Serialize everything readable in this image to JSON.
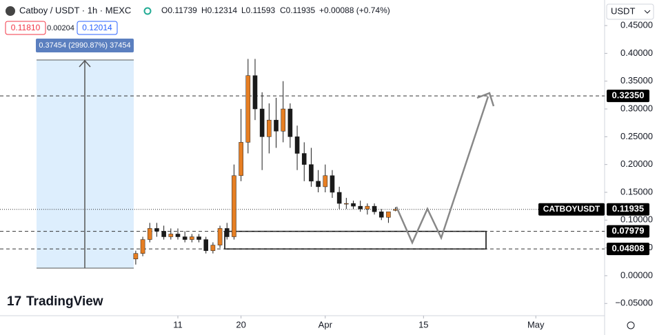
{
  "chart_data": {
    "type": "candlestick",
    "symbol": "Catboy / USDT · 1h · MEXC",
    "ohlc_text": [
      "O0.11739",
      "H0.12314",
      "L0.11593",
      "C0.11935",
      "+0.00088 (+0.74%)"
    ],
    "bid": "0.11810",
    "spread": "0.00204",
    "ask": "0.12014",
    "currency": "USDT",
    "measure_label": "0.37454 (2990.87%) 37454",
    "watermark": "TradingView",
    "up_color": "#e67e22",
    "down_color": "#1a1a1a",
    "x": [
      64,
      65,
      66,
      67,
      68,
      69,
      70,
      71,
      72,
      73,
      74,
      75,
      76,
      77,
      78,
      79,
      80,
      81,
      82,
      83,
      84,
      85,
      86,
      87,
      88,
      89,
      90,
      91,
      92,
      93,
      94,
      95,
      96,
      97,
      98,
      99,
      100,
      101
    ],
    "open": [
      0.03,
      0.04,
      0.065,
      0.085,
      0.08,
      0.07,
      0.075,
      0.07,
      0.065,
      0.07,
      0.065,
      0.045,
      0.055,
      0.085,
      0.07,
      0.18,
      0.24,
      0.36,
      0.3,
      0.25,
      0.28,
      0.26,
      0.3,
      0.25,
      0.22,
      0.2,
      0.17,
      0.16,
      0.18,
      0.15,
      0.13,
      0.13,
      0.125,
      0.12,
      0.125,
      0.115,
      0.105,
      0.11739
    ],
    "high": [
      0.045,
      0.07,
      0.095,
      0.095,
      0.09,
      0.085,
      0.085,
      0.08,
      0.075,
      0.075,
      0.07,
      0.06,
      0.09,
      0.095,
      0.2,
      0.3,
      0.39,
      0.39,
      0.33,
      0.31,
      0.32,
      0.35,
      0.31,
      0.27,
      0.24,
      0.23,
      0.19,
      0.2,
      0.19,
      0.16,
      0.14,
      0.135,
      0.135,
      0.13,
      0.13,
      0.12,
      0.11,
      0.12314
    ],
    "low": [
      0.02,
      0.035,
      0.06,
      0.07,
      0.065,
      0.065,
      0.065,
      0.06,
      0.06,
      0.06,
      0.04,
      0.04,
      0.05,
      0.065,
      0.065,
      0.17,
      0.22,
      0.28,
      0.19,
      0.22,
      0.23,
      0.24,
      0.23,
      0.19,
      0.17,
      0.16,
      0.15,
      0.15,
      0.14,
      0.12,
      0.12,
      0.12,
      0.115,
      0.11,
      0.11,
      0.1,
      0.095,
      0.11593
    ],
    "close": [
      0.04,
      0.065,
      0.085,
      0.08,
      0.07,
      0.075,
      0.07,
      0.065,
      0.07,
      0.065,
      0.045,
      0.055,
      0.085,
      0.07,
      0.18,
      0.24,
      0.36,
      0.3,
      0.25,
      0.28,
      0.26,
      0.3,
      0.25,
      0.22,
      0.2,
      0.17,
      0.16,
      0.18,
      0.15,
      0.13,
      0.13,
      0.125,
      0.12,
      0.125,
      0.115,
      0.105,
      0.115,
      0.11935
    ],
    "xlim": [
      44.66,
      130.8
    ],
    "xticks": [
      {
        "value": 70,
        "label": "11"
      },
      {
        "value": 79,
        "label": "20"
      },
      {
        "value": 91,
        "label": "Apr"
      },
      {
        "value": 105,
        "label": "15"
      },
      {
        "value": 121,
        "label": "May"
      }
    ],
    "ylim": [
      -0.072,
      0.496
    ],
    "yticks": [
      {
        "value": 0.45,
        "label": "0.45000"
      },
      {
        "value": 0.4,
        "label": "0.40000"
      },
      {
        "value": 0.35,
        "label": "0.35000"
      },
      {
        "value": 0.3,
        "label": "0.30000"
      },
      {
        "value": 0.25,
        "label": "0.25000"
      },
      {
        "value": 0.2,
        "label": "0.20000"
      },
      {
        "value": 0.15,
        "label": "0.15000"
      },
      {
        "value": 0.1,
        "label": "0.10000"
      },
      {
        "value": 0.05,
        "label": "0.05000"
      },
      {
        "value": 0,
        "label": "0.00000"
      },
      {
        "value": -0.05,
        "label": "−0.05000"
      }
    ],
    "levels": [
      {
        "value": 0.3235,
        "label": "0.32350"
      },
      {
        "value": 0.07979,
        "label": "0.07979"
      },
      {
        "value": 0.04808,
        "label": "0.04808"
      }
    ],
    "last_price": {
      "name": "CATBOYUSDT",
      "value": 0.11935,
      "label": "0.11935"
    }
  }
}
